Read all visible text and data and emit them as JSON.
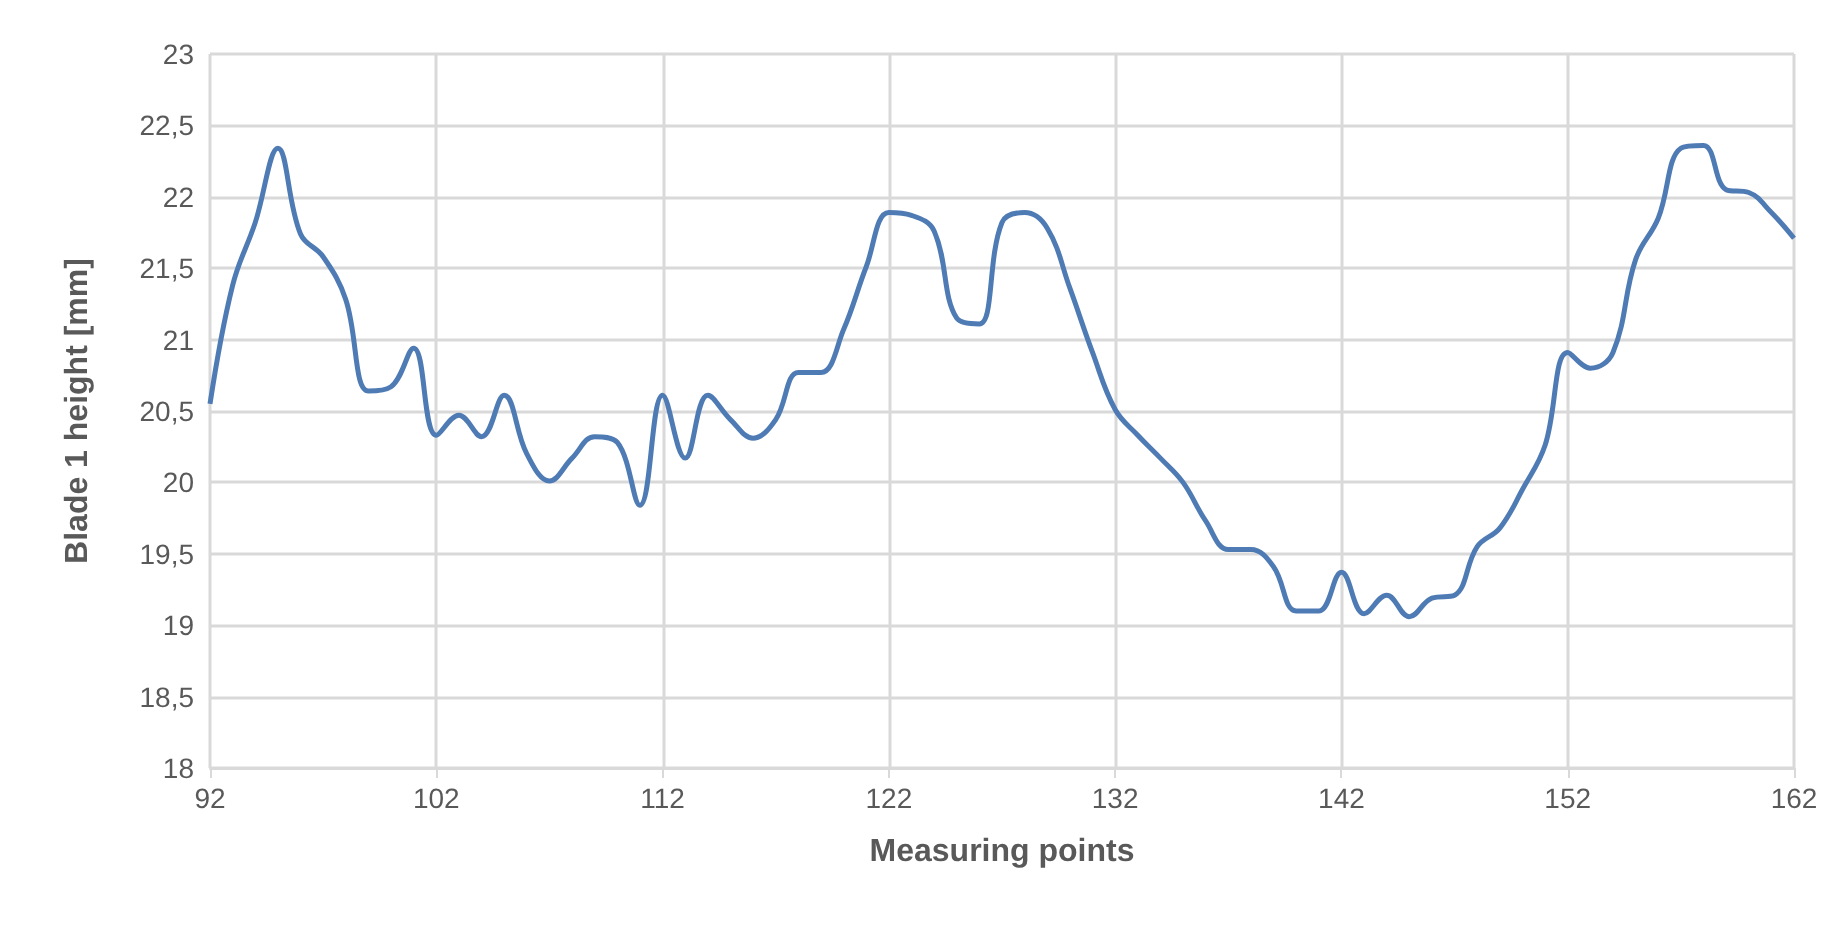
{
  "chart_data": {
    "type": "line",
    "xlabel": "Measuring points",
    "ylabel": "Blade 1 height [mm]",
    "x": [
      92,
      93,
      94,
      95,
      96,
      97,
      98,
      99,
      100,
      101,
      102,
      103,
      104,
      105,
      106,
      107,
      108,
      109,
      110,
      111,
      112,
      113,
      114,
      115,
      116,
      117,
      118,
      119,
      120,
      121,
      122,
      123,
      124,
      125,
      126,
      127,
      128,
      129,
      130,
      131,
      132,
      133,
      134,
      135,
      136,
      137,
      138,
      139,
      140,
      141,
      142,
      143,
      144,
      145,
      146,
      147,
      148,
      149,
      150,
      151,
      152,
      153,
      154,
      155,
      156,
      157,
      158,
      159,
      160,
      161,
      162
    ],
    "series": [
      {
        "color": "#4f7bb5",
        "values": [
          20.55,
          21.38,
          21.82,
          22.34,
          21.74,
          21.58,
          21.28,
          20.64,
          20.67,
          20.94,
          20.33,
          20.47,
          20.32,
          20.61,
          20.2,
          20.01,
          20.17,
          20.32,
          20.28,
          19.84,
          20.61,
          20.17,
          20.61,
          20.44,
          20.31,
          20.44,
          20.77,
          20.77,
          21.07,
          21.51,
          21.89,
          21.87,
          21.76,
          21.15,
          21.11,
          21.82,
          21.89,
          21.78,
          21.36,
          20.91,
          20.51,
          20.33,
          20.17,
          20.0,
          19.73,
          19.53,
          19.53,
          19.41,
          19.1,
          19.1,
          19.37,
          19.08,
          19.21,
          19.06,
          19.19,
          19.21,
          19.55,
          19.68,
          19.95,
          20.26,
          20.91,
          20.8,
          20.91,
          21.56,
          21.85,
          22.34,
          22.36,
          22.05,
          22.03,
          21.89,
          21.71
        ]
      }
    ],
    "xlim": [
      92,
      162
    ],
    "xticks": [
      92,
      102,
      112,
      122,
      132,
      142,
      152,
      162
    ],
    "ylim": [
      18,
      23
    ],
    "yticks": [
      18,
      {
        "value": 18.5,
        "label": "18,5"
      },
      19,
      {
        "value": 19.5,
        "label": "19,5"
      },
      20,
      {
        "value": 20.5,
        "label": "20,5"
      },
      21,
      {
        "value": 21.5,
        "label": "21,5"
      },
      22,
      {
        "value": 22.5,
        "label": "22,5"
      },
      23
    ],
    "grid": true,
    "marker": "none",
    "line_style": "solid"
  }
}
